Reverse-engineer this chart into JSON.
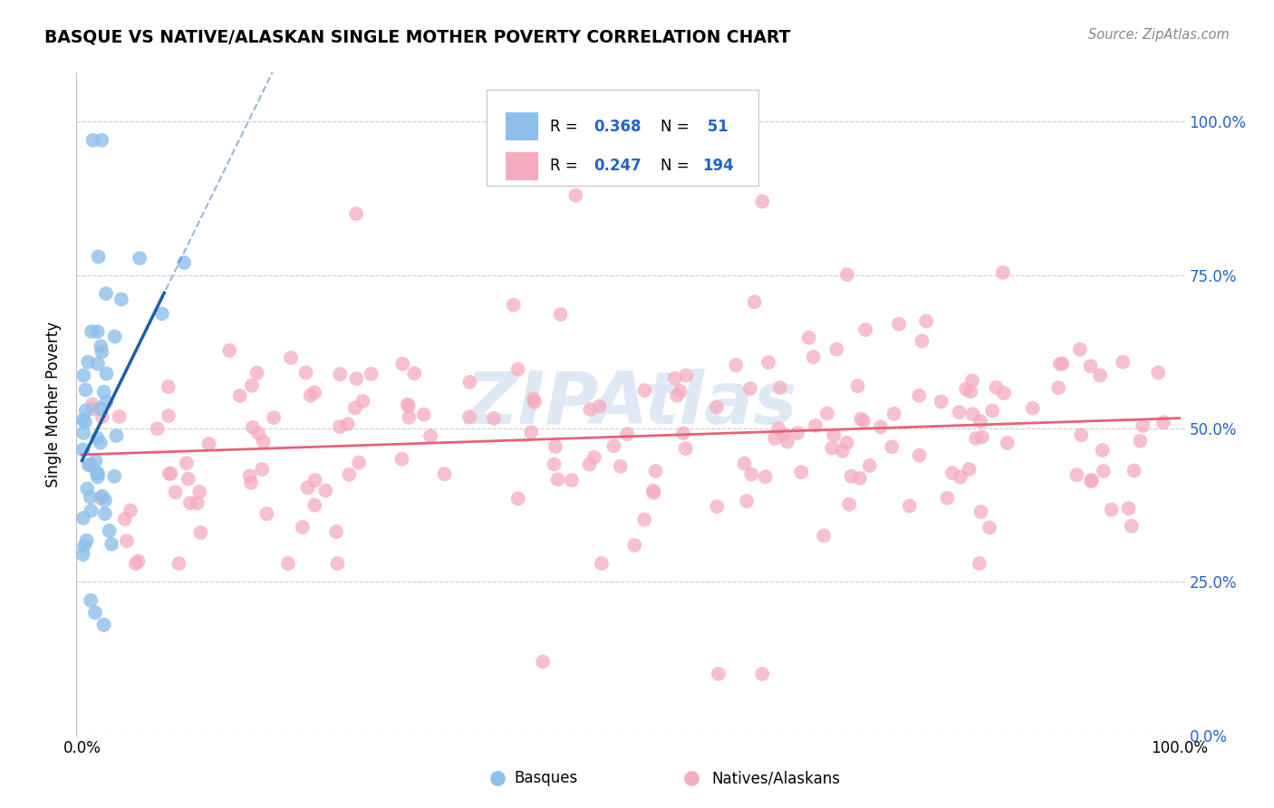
{
  "title": "BASQUE VS NATIVE/ALASKAN SINGLE MOTHER POVERTY CORRELATION CHART",
  "source_text": "Source: ZipAtlas.com",
  "ylabel": "Single Mother Poverty",
  "basque_color": "#8EC0EC",
  "native_color": "#F5ABBE",
  "basque_line_color": "#1A5FAB",
  "native_line_color": "#E8607A",
  "background_color": "#FFFFFF",
  "grid_color": "#CCCCCC",
  "right_axis_color": "#2563C9",
  "legend_box_color": "#DDDDDD",
  "watermark_color": "#C5D8F0",
  "r_n_color": "#2563C9"
}
